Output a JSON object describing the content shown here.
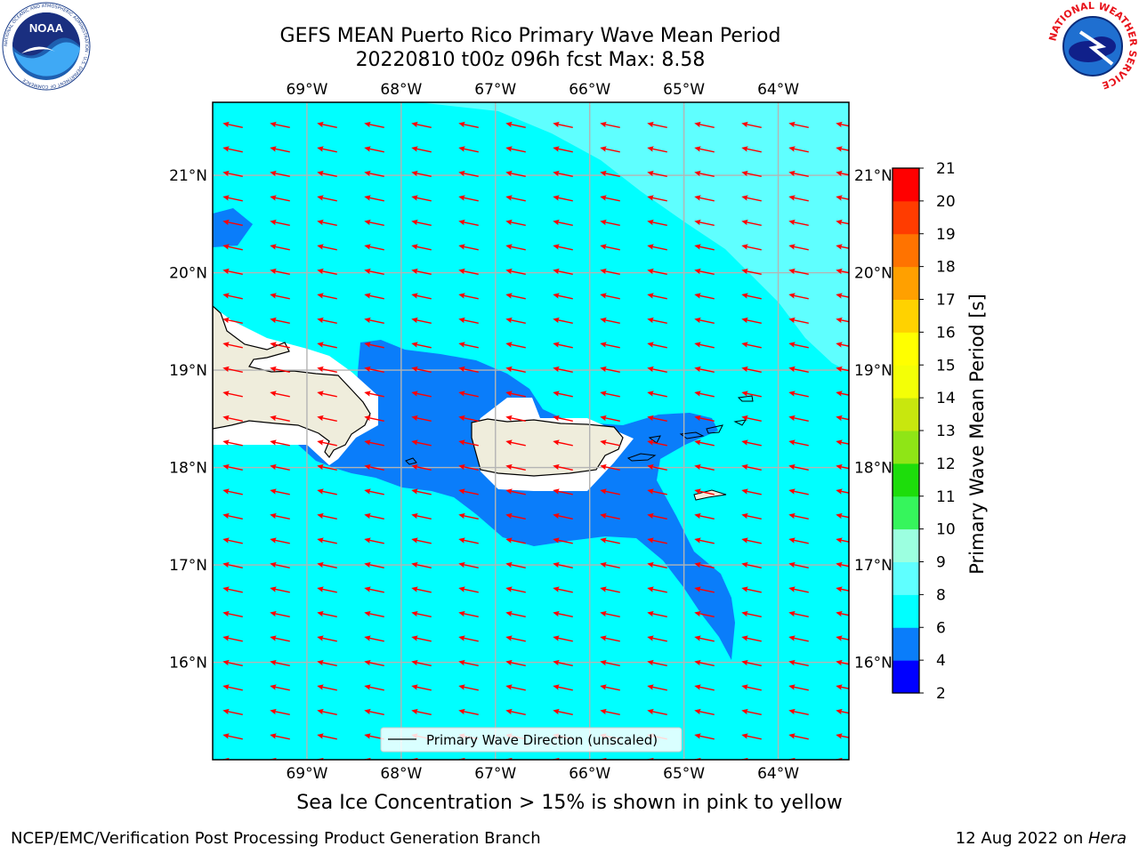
{
  "header": {
    "title_line1": "GEFS MEAN Puerto Rico Primary Wave Mean Period",
    "title_line2": "20220810 t00z 096h fcst   Max: 8.58"
  },
  "logos": {
    "left": "NOAA",
    "left_ring_text": "NATIONAL OCEANIC AND ATMOSPHERIC ADMINISTRATION · U.S. DEPARTMENT OF COMMERCE",
    "right_ring_text": "NATIONAL WEATHER SERVICE"
  },
  "chart_data": {
    "type": "heatmap",
    "title": "GEFS MEAN Puerto Rico Primary Wave Mean Period",
    "subtitle": "20220810 t00z 096h fcst   Max: 8.58",
    "x_ticks": [
      "69°W",
      "68°W",
      "67°W",
      "66°W",
      "65°W",
      "64°W"
    ],
    "y_ticks": [
      "21°N",
      "20°N",
      "19°N",
      "18°N",
      "17°N",
      "16°N"
    ],
    "xlim": [
      -70.0,
      -63.25
    ],
    "ylim": [
      15.0,
      21.75
    ],
    "grid": true,
    "colorbar": {
      "label": "Primary Wave Mean Period [s]",
      "ticks": [
        "2",
        "4",
        "6",
        "8",
        "9",
        "10",
        "11",
        "12",
        "13",
        "14",
        "15",
        "16",
        "17",
        "18",
        "19",
        "20",
        "21"
      ],
      "colors": [
        "#0000ff",
        "#0a7dfa",
        "#00ffff",
        "#5fffff",
        "#9cffe0",
        "#36f55c",
        "#1ddd0b",
        "#8fe516",
        "#c8e70e",
        "#f4ff06",
        "#ffff00",
        "#ffd200",
        "#ffa000",
        "#ff7300",
        "#ff3c00",
        "#ff0000"
      ]
    },
    "legend": {
      "label": "Primary Wave Direction (unscaled)",
      "position": "bottom-center"
    },
    "max": 8.58,
    "wave_direction": "toward west-northwest"
  },
  "note": "Sea Ice Concentration > 15% is shown in pink to yellow",
  "footer": {
    "left": "NCEP/EMC/Verification Post Processing Product Generation Branch",
    "right_prefix": "12 Aug 2022 on ",
    "right_machine": "Hera"
  },
  "colors": {
    "land": "#efeddc",
    "arrow": "#ff0000",
    "grid": "#b4b4b4"
  }
}
